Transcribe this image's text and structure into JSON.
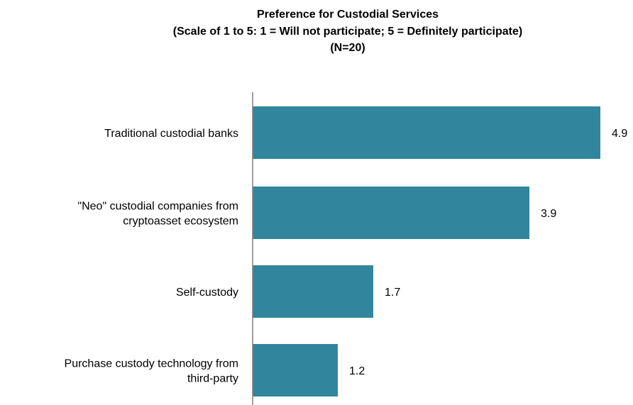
{
  "chart_data": {
    "type": "bar",
    "orientation": "horizontal",
    "title": [
      "Preference for Custodial Services",
      "(Scale of 1 to 5: 1 = Will not participate; 5 = Definitely participate)",
      "(N=20)"
    ],
    "categories": [
      [
        "Traditional custodial banks"
      ],
      [
        "\"Neo\" custodial companies from",
        "cryptoasset ecosystem"
      ],
      [
        "Self-custody"
      ],
      [
        "Purchase custody technology from",
        "third-party"
      ]
    ],
    "values": [
      4.9,
      3.9,
      1.7,
      1.2
    ],
    "value_labels": [
      "4.9",
      "3.9",
      "1.7",
      "1.2"
    ],
    "xlim": [
      0,
      4.9
    ],
    "bar_color": "#31859c",
    "axis_color": "#7f7f7f",
    "grid": false,
    "legend": "none"
  }
}
